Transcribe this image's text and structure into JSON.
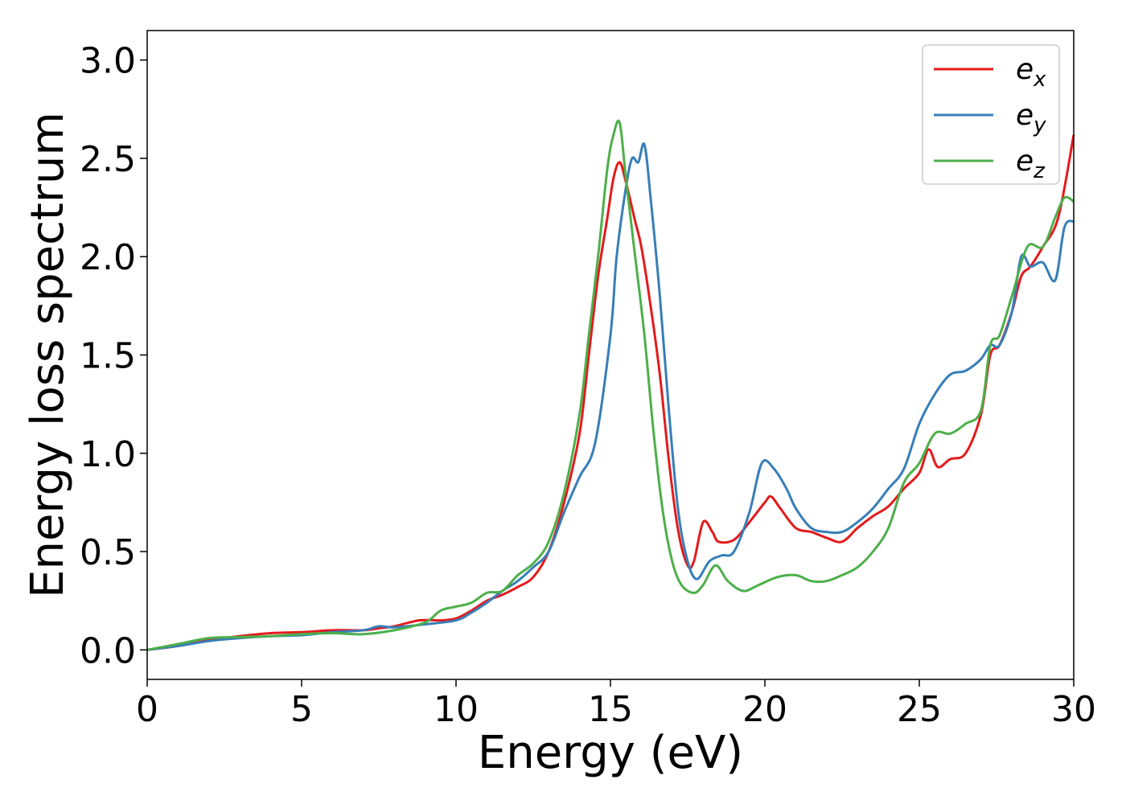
{
  "chart_data": {
    "type": "line",
    "title": "",
    "xlabel": "Energy (eV)",
    "ylabel": "Energy loss spectrum",
    "xlim": [
      0,
      30
    ],
    "ylim": [
      -0.15,
      3.15
    ],
    "xticks": [
      "0",
      "5",
      "10",
      "15",
      "20",
      "25",
      "30"
    ],
    "yticks": [
      "0.0",
      "0.5",
      "1.0",
      "1.5",
      "2.0",
      "2.5",
      "3.0"
    ],
    "grid": false,
    "legend": {
      "position": "top-right"
    },
    "series": [
      {
        "name": "e",
        "subscript": "x",
        "color": "#e41a1c",
        "points": [
          [
            0,
            0
          ],
          [
            1,
            0.02
          ],
          [
            2,
            0.05
          ],
          [
            3,
            0.07
          ],
          [
            4,
            0.085
          ],
          [
            5,
            0.09
          ],
          [
            6,
            0.1
          ],
          [
            7,
            0.1
          ],
          [
            7.5,
            0.11
          ],
          [
            8,
            0.12
          ],
          [
            8.8,
            0.15
          ],
          [
            9.5,
            0.15
          ],
          [
            10,
            0.16
          ],
          [
            10.5,
            0.2
          ],
          [
            11,
            0.25
          ],
          [
            11.5,
            0.28
          ],
          [
            12,
            0.32
          ],
          [
            12.5,
            0.37
          ],
          [
            13,
            0.5
          ],
          [
            13.5,
            0.75
          ],
          [
            14,
            1.1
          ],
          [
            14.3,
            1.5
          ],
          [
            14.6,
            1.9
          ],
          [
            14.9,
            2.2
          ],
          [
            15.1,
            2.4
          ],
          [
            15.3,
            2.48
          ],
          [
            15.5,
            2.38
          ],
          [
            15.8,
            2.18
          ],
          [
            16,
            2.05
          ],
          [
            16.3,
            1.75
          ],
          [
            16.6,
            1.4
          ],
          [
            16.9,
            0.95
          ],
          [
            17.2,
            0.6
          ],
          [
            17.5,
            0.43
          ],
          [
            17.7,
            0.45
          ],
          [
            18,
            0.65
          ],
          [
            18.3,
            0.6
          ],
          [
            18.5,
            0.55
          ],
          [
            19,
            0.56
          ],
          [
            19.5,
            0.65
          ],
          [
            20,
            0.75
          ],
          [
            20.2,
            0.78
          ],
          [
            20.5,
            0.72
          ],
          [
            21,
            0.62
          ],
          [
            21.5,
            0.6
          ],
          [
            22,
            0.57
          ],
          [
            22.5,
            0.55
          ],
          [
            23,
            0.62
          ],
          [
            23.5,
            0.68
          ],
          [
            24,
            0.73
          ],
          [
            24.5,
            0.82
          ],
          [
            25,
            0.9
          ],
          [
            25.3,
            1.02
          ],
          [
            25.6,
            0.93
          ],
          [
            26,
            0.97
          ],
          [
            26.5,
            1.0
          ],
          [
            27,
            1.2
          ],
          [
            27.3,
            1.5
          ],
          [
            27.6,
            1.55
          ],
          [
            28,
            1.72
          ],
          [
            28.3,
            1.9
          ],
          [
            28.6,
            1.95
          ],
          [
            29,
            2.05
          ],
          [
            29.5,
            2.2
          ],
          [
            30,
            2.62
          ]
        ]
      },
      {
        "name": "e",
        "subscript": "y",
        "color": "#377eb8",
        "points": [
          [
            0,
            0
          ],
          [
            1,
            0.02
          ],
          [
            2,
            0.045
          ],
          [
            3,
            0.06
          ],
          [
            4,
            0.07
          ],
          [
            5,
            0.075
          ],
          [
            6,
            0.09
          ],
          [
            7,
            0.1
          ],
          [
            7.5,
            0.12
          ],
          [
            8,
            0.115
          ],
          [
            9,
            0.13
          ],
          [
            10,
            0.15
          ],
          [
            10.5,
            0.19
          ],
          [
            11,
            0.24
          ],
          [
            11.5,
            0.3
          ],
          [
            12,
            0.35
          ],
          [
            12.5,
            0.42
          ],
          [
            13,
            0.5
          ],
          [
            13.5,
            0.7
          ],
          [
            14,
            0.88
          ],
          [
            14.5,
            1.05
          ],
          [
            15,
            1.6
          ],
          [
            15.2,
            2.0
          ],
          [
            15.5,
            2.35
          ],
          [
            15.7,
            2.5
          ],
          [
            15.9,
            2.48
          ],
          [
            16.1,
            2.57
          ],
          [
            16.3,
            2.3
          ],
          [
            16.6,
            1.8
          ],
          [
            16.9,
            1.2
          ],
          [
            17.2,
            0.7
          ],
          [
            17.5,
            0.45
          ],
          [
            17.8,
            0.36
          ],
          [
            18.2,
            0.45
          ],
          [
            18.6,
            0.48
          ],
          [
            19,
            0.5
          ],
          [
            19.5,
            0.7
          ],
          [
            19.9,
            0.95
          ],
          [
            20.3,
            0.92
          ],
          [
            20.7,
            0.82
          ],
          [
            21,
            0.72
          ],
          [
            21.5,
            0.62
          ],
          [
            22,
            0.6
          ],
          [
            22.5,
            0.6
          ],
          [
            23,
            0.65
          ],
          [
            23.5,
            0.72
          ],
          [
            24,
            0.82
          ],
          [
            24.5,
            0.92
          ],
          [
            25,
            1.15
          ],
          [
            25.5,
            1.3
          ],
          [
            26,
            1.4
          ],
          [
            26.5,
            1.42
          ],
          [
            27,
            1.48
          ],
          [
            27.3,
            1.55
          ],
          [
            27.6,
            1.55
          ],
          [
            28,
            1.72
          ],
          [
            28.3,
            2.0
          ],
          [
            28.6,
            1.95
          ],
          [
            29,
            1.97
          ],
          [
            29.4,
            1.88
          ],
          [
            29.7,
            2.15
          ],
          [
            30,
            2.18
          ]
        ]
      },
      {
        "name": "e",
        "subscript": "z",
        "color": "#4daf4a",
        "points": [
          [
            0,
            0
          ],
          [
            1,
            0.03
          ],
          [
            2,
            0.06
          ],
          [
            3,
            0.065
          ],
          [
            4,
            0.07
          ],
          [
            5,
            0.08
          ],
          [
            6,
            0.085
          ],
          [
            7,
            0.08
          ],
          [
            8,
            0.1
          ],
          [
            9,
            0.14
          ],
          [
            9.5,
            0.2
          ],
          [
            10,
            0.22
          ],
          [
            10.5,
            0.24
          ],
          [
            11,
            0.29
          ],
          [
            11.5,
            0.3
          ],
          [
            12,
            0.38
          ],
          [
            12.5,
            0.44
          ],
          [
            13,
            0.55
          ],
          [
            13.5,
            0.8
          ],
          [
            14,
            1.2
          ],
          [
            14.3,
            1.6
          ],
          [
            14.6,
            2.0
          ],
          [
            14.9,
            2.45
          ],
          [
            15.1,
            2.62
          ],
          [
            15.3,
            2.68
          ],
          [
            15.5,
            2.4
          ],
          [
            15.8,
            2.0
          ],
          [
            16.1,
            1.6
          ],
          [
            16.4,
            1.1
          ],
          [
            16.7,
            0.7
          ],
          [
            17,
            0.45
          ],
          [
            17.3,
            0.33
          ],
          [
            17.7,
            0.29
          ],
          [
            18,
            0.33
          ],
          [
            18.4,
            0.43
          ],
          [
            18.8,
            0.35
          ],
          [
            19.3,
            0.3
          ],
          [
            19.8,
            0.33
          ],
          [
            20.4,
            0.37
          ],
          [
            21,
            0.38
          ],
          [
            21.5,
            0.35
          ],
          [
            22,
            0.35
          ],
          [
            22.5,
            0.38
          ],
          [
            23,
            0.42
          ],
          [
            23.5,
            0.5
          ],
          [
            24,
            0.62
          ],
          [
            24.5,
            0.85
          ],
          [
            25,
            0.95
          ],
          [
            25.5,
            1.1
          ],
          [
            26,
            1.1
          ],
          [
            26.5,
            1.15
          ],
          [
            27,
            1.22
          ],
          [
            27.3,
            1.55
          ],
          [
            27.6,
            1.6
          ],
          [
            28,
            1.8
          ],
          [
            28.5,
            2.05
          ],
          [
            29,
            2.05
          ],
          [
            29.4,
            2.2
          ],
          [
            29.7,
            2.3
          ],
          [
            30,
            2.28
          ]
        ]
      }
    ]
  }
}
